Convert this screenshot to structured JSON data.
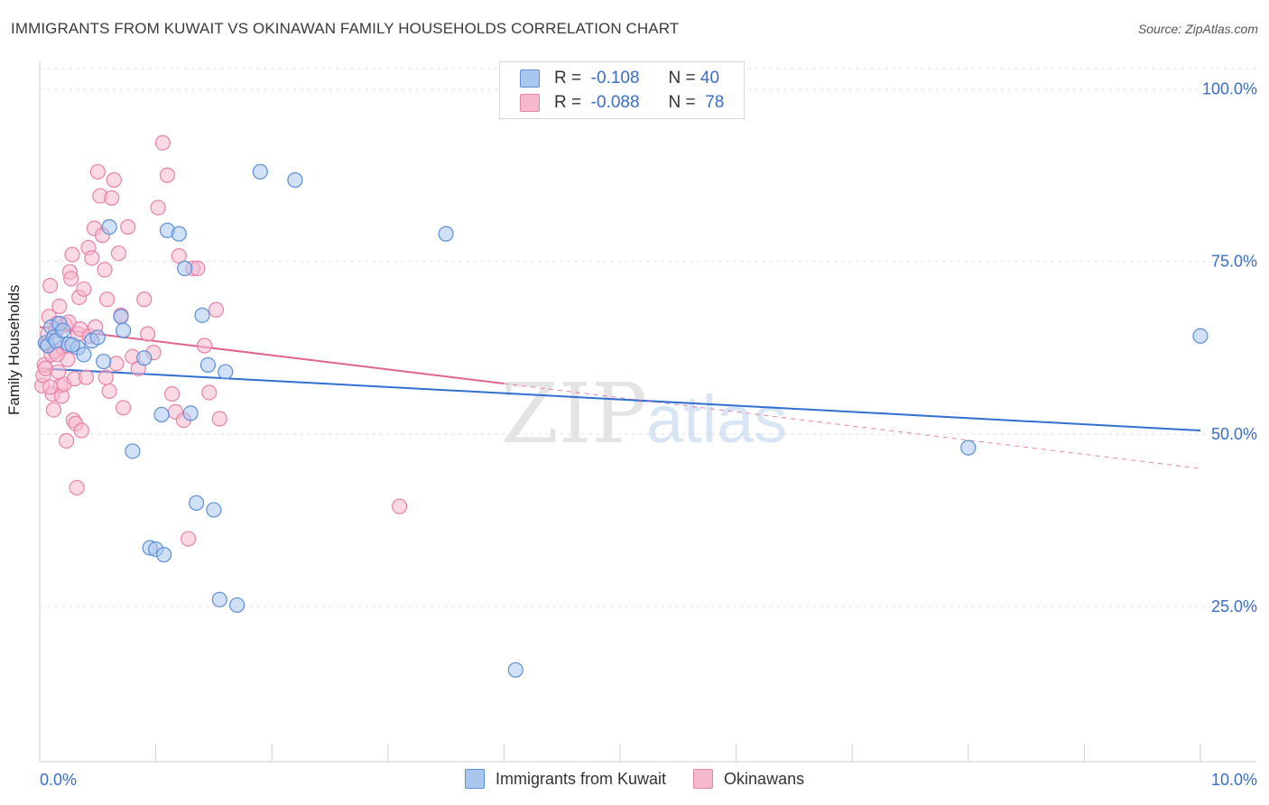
{
  "title": "IMMIGRANTS FROM KUWAIT VS OKINAWAN FAMILY HOUSEHOLDS CORRELATION CHART",
  "source": "Source: ZipAtlas.com",
  "watermark": {
    "zip": "ZIP",
    "atlas": "atlas"
  },
  "legend": {
    "series1": {
      "r_label": "R =",
      "r_value": "-0.108",
      "n_label": "N =",
      "n_value": "40"
    },
    "series2": {
      "r_label": "R =",
      "r_value": "-0.088",
      "n_label": "N =",
      "n_value": "78"
    }
  },
  "colors": {
    "blue_fill": "#a9c6ee",
    "blue_stroke": "#5b8fd8",
    "blue_line": "#2f6fd0",
    "pink_fill": "#f5b9cf",
    "pink_stroke": "#e882a6",
    "pink_line": "#e0648f",
    "axis_text": "#3a6ec9",
    "grid": "#e4e4e4"
  },
  "chart_data": {
    "type": "scatter",
    "title": "IMMIGRANTS FROM KUWAIT VS OKINAWAN FAMILY HOUSEHOLDS CORRELATION CHART",
    "xlabel": "",
    "ylabel": "Family Households",
    "xlim": [
      0,
      10
    ],
    "ylim": [
      2.5,
      104
    ],
    "x_tick_labels": [
      "0.0%",
      "10.0%"
    ],
    "y_ticks": [
      25,
      50,
      75,
      100
    ],
    "y_tick_labels": [
      "25.0%",
      "50.0%",
      "75.0%",
      "100.0%"
    ],
    "series": [
      {
        "name": "Immigrants from Kuwait",
        "r": -0.108,
        "n": 40,
        "trend": {
          "x0": 0.0,
          "y0": 59.5,
          "x1": 10.0,
          "y1": 50.5
        },
        "points": [
          [
            0.05,
            63.2
          ],
          [
            0.07,
            62.8
          ],
          [
            0.1,
            65.5
          ],
          [
            0.12,
            64.0
          ],
          [
            0.14,
            63.5
          ],
          [
            0.17,
            66.0
          ],
          [
            0.2,
            65.0
          ],
          [
            0.25,
            63.0
          ],
          [
            0.33,
            62.5
          ],
          [
            0.38,
            61.5
          ],
          [
            0.45,
            63.5
          ],
          [
            0.5,
            64.0
          ],
          [
            0.55,
            60.5
          ],
          [
            0.6,
            80.0
          ],
          [
            0.7,
            67.0
          ],
          [
            0.72,
            65.0
          ],
          [
            0.8,
            47.5
          ],
          [
            0.9,
            61.0
          ],
          [
            0.95,
            33.5
          ],
          [
            1.0,
            33.3
          ],
          [
            1.05,
            52.8
          ],
          [
            1.07,
            32.5
          ],
          [
            1.1,
            79.5
          ],
          [
            1.2,
            79.0
          ],
          [
            1.25,
            74.0
          ],
          [
            1.3,
            53.0
          ],
          [
            1.35,
            40.0
          ],
          [
            1.4,
            67.2
          ],
          [
            1.45,
            60.0
          ],
          [
            1.5,
            39.0
          ],
          [
            1.55,
            26.0
          ],
          [
            1.6,
            59.0
          ],
          [
            1.7,
            25.2
          ],
          [
            1.9,
            88.0
          ],
          [
            2.2,
            86.8
          ],
          [
            3.5,
            79.0
          ],
          [
            4.1,
            15.8
          ],
          [
            8.0,
            48.0
          ],
          [
            10.0,
            64.2
          ],
          [
            0.28,
            62.9
          ]
        ]
      },
      {
        "name": "Okinawans",
        "r": -0.088,
        "n": 78,
        "trend": {
          "x0": 0.0,
          "y0": 65.5,
          "x1": 4.0,
          "y1": 57.3
        },
        "trend_dashed": {
          "x0": 4.0,
          "y0": 57.3,
          "x1": 10.0,
          "y1": 45.0
        },
        "points": [
          [
            0.02,
            57.0
          ],
          [
            0.03,
            58.5
          ],
          [
            0.04,
            60.0
          ],
          [
            0.05,
            59.5
          ],
          [
            0.06,
            63.0
          ],
          [
            0.07,
            64.5
          ],
          [
            0.08,
            67.0
          ],
          [
            0.09,
            71.5
          ],
          [
            0.1,
            61.5
          ],
          [
            0.11,
            55.8
          ],
          [
            0.12,
            53.5
          ],
          [
            0.13,
            62.0
          ],
          [
            0.14,
            65.0
          ],
          [
            0.15,
            66.0
          ],
          [
            0.16,
            59.0
          ],
          [
            0.17,
            68.5
          ],
          [
            0.18,
            57.0
          ],
          [
            0.19,
            55.5
          ],
          [
            0.2,
            62.5
          ],
          [
            0.21,
            57.2
          ],
          [
            0.22,
            65.8
          ],
          [
            0.23,
            49.0
          ],
          [
            0.24,
            60.8
          ],
          [
            0.25,
            66.2
          ],
          [
            0.26,
            73.5
          ],
          [
            0.27,
            72.5
          ],
          [
            0.28,
            76.0
          ],
          [
            0.29,
            52.0
          ],
          [
            0.3,
            58.0
          ],
          [
            0.31,
            51.5
          ],
          [
            0.32,
            42.2
          ],
          [
            0.33,
            64.5
          ],
          [
            0.34,
            69.8
          ],
          [
            0.35,
            65.2
          ],
          [
            0.36,
            50.5
          ],
          [
            0.38,
            71.0
          ],
          [
            0.4,
            58.2
          ],
          [
            0.42,
            77.0
          ],
          [
            0.43,
            64.2
          ],
          [
            0.45,
            75.5
          ],
          [
            0.47,
            79.8
          ],
          [
            0.48,
            65.5
          ],
          [
            0.5,
            88.0
          ],
          [
            0.52,
            84.5
          ],
          [
            0.54,
            78.8
          ],
          [
            0.56,
            73.8
          ],
          [
            0.57,
            58.2
          ],
          [
            0.58,
            69.5
          ],
          [
            0.6,
            56.2
          ],
          [
            0.62,
            84.2
          ],
          [
            0.64,
            86.8
          ],
          [
            0.66,
            60.2
          ],
          [
            0.68,
            76.2
          ],
          [
            0.7,
            67.2
          ],
          [
            0.72,
            53.8
          ],
          [
            0.76,
            80.0
          ],
          [
            0.8,
            61.2
          ],
          [
            0.85,
            59.5
          ],
          [
            0.9,
            69.5
          ],
          [
            0.93,
            64.5
          ],
          [
            0.98,
            61.8
          ],
          [
            1.02,
            82.8
          ],
          [
            1.06,
            92.2
          ],
          [
            1.1,
            87.5
          ],
          [
            1.14,
            55.8
          ],
          [
            1.17,
            53.2
          ],
          [
            1.2,
            75.8
          ],
          [
            1.24,
            52.0
          ],
          [
            1.28,
            34.8
          ],
          [
            1.32,
            74.0
          ],
          [
            1.36,
            74.0
          ],
          [
            1.42,
            62.8
          ],
          [
            1.46,
            56.0
          ],
          [
            1.52,
            68.0
          ],
          [
            1.55,
            52.2
          ],
          [
            3.1,
            39.5
          ],
          [
            0.15,
            61.5
          ],
          [
            0.09,
            56.8
          ]
        ]
      }
    ]
  },
  "bottom_legend": {
    "item1": "Immigrants from Kuwait",
    "item2": "Okinawans"
  }
}
